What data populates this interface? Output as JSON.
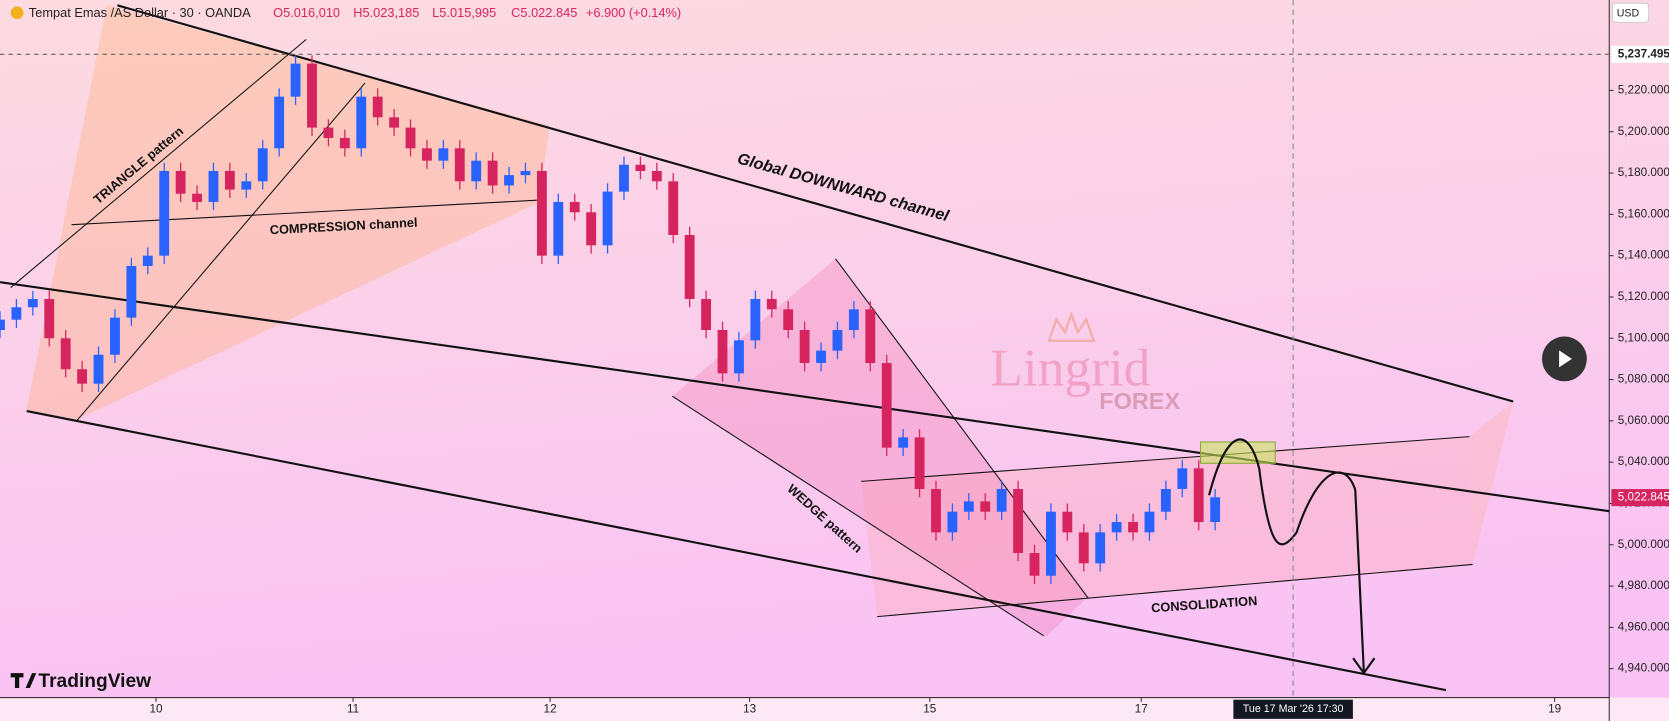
{
  "header": {
    "symbol": "Tempat Emas /AS Dollar · 30 · OANDA",
    "open": "O5.016,010",
    "high": "H5.023,185",
    "low": "L5.015,995",
    "close": "C5.022.845",
    "change": "+6.900 (+0.14%)",
    "currency": "USD"
  },
  "chart_data": {
    "type": "candlestick",
    "x": [
      0,
      4,
      8,
      12,
      16,
      20,
      24,
      28,
      32,
      36,
      40,
      44,
      48,
      52,
      56,
      60,
      64,
      68,
      72,
      76,
      80,
      84,
      88,
      92,
      96,
      100,
      104,
      108,
      112,
      116,
      120,
      124,
      128,
      132,
      136,
      140,
      144,
      148,
      152,
      156,
      160,
      164,
      168,
      172,
      176,
      180,
      184,
      188,
      192,
      196,
      200,
      204,
      208,
      212,
      216,
      220,
      224,
      228,
      232,
      236,
      240,
      244,
      248,
      252,
      256,
      260,
      264,
      268,
      272,
      276,
      280,
      284,
      288,
      292,
      296
    ],
    "open": [
      5104,
      5109,
      5115,
      5119,
      5100,
      5085,
      5078,
      5092,
      5110,
      5135,
      5140,
      5181,
      5170,
      5166,
      5181,
      5172,
      5176,
      5192,
      5217,
      5233,
      5202,
      5197,
      5192,
      5217,
      5207,
      5202,
      5192,
      5186,
      5192,
      5176,
      5186,
      5174,
      5179,
      5181,
      5140,
      5166,
      5161,
      5145,
      5171,
      5184,
      5181,
      5176,
      5150,
      5119,
      5104,
      5083,
      5099,
      5119,
      5114,
      5104,
      5088,
      5094,
      5104,
      5114,
      5088,
      5047,
      5052,
      5027,
      5006,
      5016,
      5021,
      5016,
      5027,
      4996,
      4985,
      5016,
      5006,
      4991,
      5006,
      5011,
      5006,
      5016,
      5027,
      5037,
      5011
    ],
    "high": [
      5113,
      5119,
      5123,
      5123,
      5104,
      5089,
      5096,
      5114,
      5139,
      5144,
      5185,
      5185,
      5174,
      5185,
      5185,
      5180,
      5196,
      5221,
      5237,
      5237,
      5206,
      5201,
      5221,
      5221,
      5211,
      5206,
      5196,
      5196,
      5196,
      5190,
      5190,
      5183,
      5185,
      5185,
      5170,
      5170,
      5165,
      5175,
      5188,
      5188,
      5185,
      5180,
      5154,
      5123,
      5108,
      5103,
      5123,
      5123,
      5118,
      5108,
      5098,
      5108,
      5118,
      5118,
      5092,
      5056,
      5056,
      5031,
      5020,
      5025,
      5025,
      5031,
      5031,
      5000,
      5020,
      5020,
      5010,
      5010,
      5015,
      5015,
      5020,
      5031,
      5041,
      5041,
      5027
    ],
    "low": [
      5100,
      5105,
      5111,
      5096,
      5081,
      5074,
      5074,
      5088,
      5106,
      5131,
      5136,
      5166,
      5162,
      5162,
      5168,
      5168,
      5172,
      5188,
      5213,
      5198,
      5193,
      5188,
      5188,
      5203,
      5198,
      5188,
      5182,
      5182,
      5172,
      5172,
      5170,
      5170,
      5175,
      5136,
      5136,
      5157,
      5141,
      5141,
      5167,
      5177,
      5172,
      5146,
      5115,
      5100,
      5079,
      5079,
      5095,
      5110,
      5100,
      5084,
      5084,
      5090,
      5100,
      5084,
      5043,
      5043,
      5023,
      5002,
      5002,
      5012,
      5012,
      5012,
      4992,
      4981,
      4981,
      5002,
      4987,
      4987,
      5002,
      5002,
      5002,
      5012,
      5023,
      5007,
      5007
    ],
    "close": [
      5109,
      5115,
      5119,
      5100,
      5085,
      5078,
      5092,
      5110,
      5135,
      5140,
      5181,
      5170,
      5166,
      5181,
      5172,
      5176,
      5192,
      5217,
      5233,
      5202,
      5197,
      5192,
      5217,
      5207,
      5202,
      5192,
      5186,
      5192,
      5176,
      5186,
      5174,
      5179,
      5181,
      5140,
      5166,
      5161,
      5145,
      5171,
      5184,
      5181,
      5176,
      5150,
      5119,
      5104,
      5083,
      5099,
      5119,
      5114,
      5104,
      5088,
      5094,
      5104,
      5114,
      5088,
      5047,
      5052,
      5027,
      5006,
      5016,
      5021,
      5016,
      5027,
      4996,
      4985,
      5016,
      5006,
      4991,
      5006,
      5011,
      5006,
      5016,
      5027,
      5037,
      5011,
      5023
    ],
    "up_color": "#2962ff",
    "down_color": "#d6245f",
    "xlim": [
      0,
      392
    ],
    "xticks": [
      {
        "value": 38,
        "label": "10"
      },
      {
        "value": 86,
        "label": "11"
      },
      {
        "value": 134,
        "label": "12"
      },
      {
        "value": 182.6,
        "label": "13"
      },
      {
        "value": 226.5,
        "label": "15"
      },
      {
        "value": 278,
        "label": "17"
      },
      {
        "value": 378.7,
        "label": "19"
      }
    ],
    "ylim": [
      4926,
      5263.8
    ],
    "yticks": [
      {
        "value": 4940,
        "label": "4,940.000"
      },
      {
        "value": 4960,
        "label": "4,960.000"
      },
      {
        "value": 4980,
        "label": "4,980.000"
      },
      {
        "value": 5000,
        "label": "5,000.000"
      },
      {
        "value": 5020,
        "label": "5,020.000"
      },
      {
        "value": 5040,
        "label": "5,040.000"
      },
      {
        "value": 5060,
        "label": "5,060.000"
      },
      {
        "value": 5080,
        "label": "5,080.000"
      },
      {
        "value": 5100,
        "label": "5,100.000"
      },
      {
        "value": 5120,
        "label": "5,120.000"
      },
      {
        "value": 5140,
        "label": "5,140.000"
      },
      {
        "value": 5160,
        "label": "5,160.000"
      },
      {
        "value": 5180,
        "label": "5,180.000"
      },
      {
        "value": 5200,
        "label": "5,200.000"
      },
      {
        "value": 5220,
        "label": "5,220.000"
      }
    ],
    "high_marker": {
      "value": 5237.495,
      "label": "5,237.495"
    },
    "last_price": {
      "value": 5022.845,
      "label": "5,022.845"
    },
    "crosshair": {
      "x": 315,
      "label": "Tue 17 Mar '26   17:30"
    },
    "annotations": [
      "TRIANGLE pattern",
      "COMPRESSION channel",
      "Global DOWNWARD channel",
      "WEDGE pattern",
      "CONSOLIDATION"
    ]
  },
  "watermark": {
    "name": "Lingrid",
    "sub": "FOREX",
    "brand": "TradingView"
  }
}
